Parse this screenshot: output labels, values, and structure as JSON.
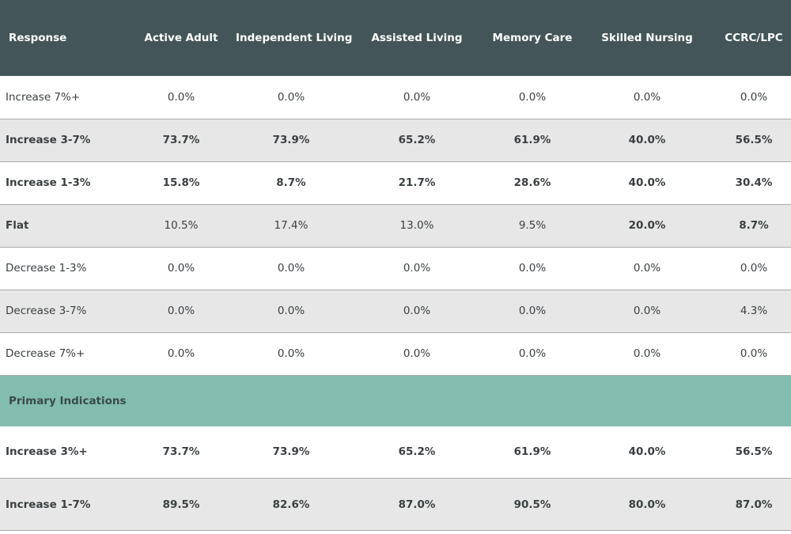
{
  "table": {
    "header": [
      "Response",
      "Active Adult",
      "Independent Living",
      "Assisted Living",
      "Memory Care",
      "Skilled Nursing",
      "CCRC/LPC"
    ],
    "rows": [
      [
        "Increase 7%+",
        "0.0%",
        "0.0%",
        "0.0%",
        "0.0%",
        "0.0%",
        "0.0%"
      ],
      [
        "Increase 3-7%",
        "73.7%",
        "73.9%",
        "65.2%",
        "61.9%",
        "40.0%",
        "56.5%"
      ],
      [
        "Increase 1-3%",
        "15.8%",
        "8.7%",
        "21.7%",
        "28.6%",
        "40.0%",
        "30.4%"
      ],
      [
        "Flat",
        "10.5%",
        "17.4%",
        "13.0%",
        "9.5%",
        "20.0%",
        "8.7%"
      ],
      [
        "Decrease 1-3%",
        "0.0%",
        "0.0%",
        "0.0%",
        "0.0%",
        "0.0%",
        "0.0%"
      ],
      [
        "Decrease 3-7%",
        "0.0%",
        "0.0%",
        "0.0%",
        "0.0%",
        "0.0%",
        "4.3%"
      ],
      [
        "Decrease 7%+",
        "0.0%",
        "0.0%",
        "0.0%",
        "0.0%",
        "0.0%",
        "0.0%"
      ]
    ],
    "section": "Primary Indications",
    "primary_rows": [
      [
        "Increase 3%+",
        "73.7%",
        "73.9%",
        "65.2%",
        "61.9%",
        "40.0%",
        "56.5%"
      ],
      [
        "Increase 1-7%",
        "89.5%",
        "82.6%",
        "87.0%",
        "90.5%",
        "80.0%",
        "87.0%"
      ]
    ]
  }
}
